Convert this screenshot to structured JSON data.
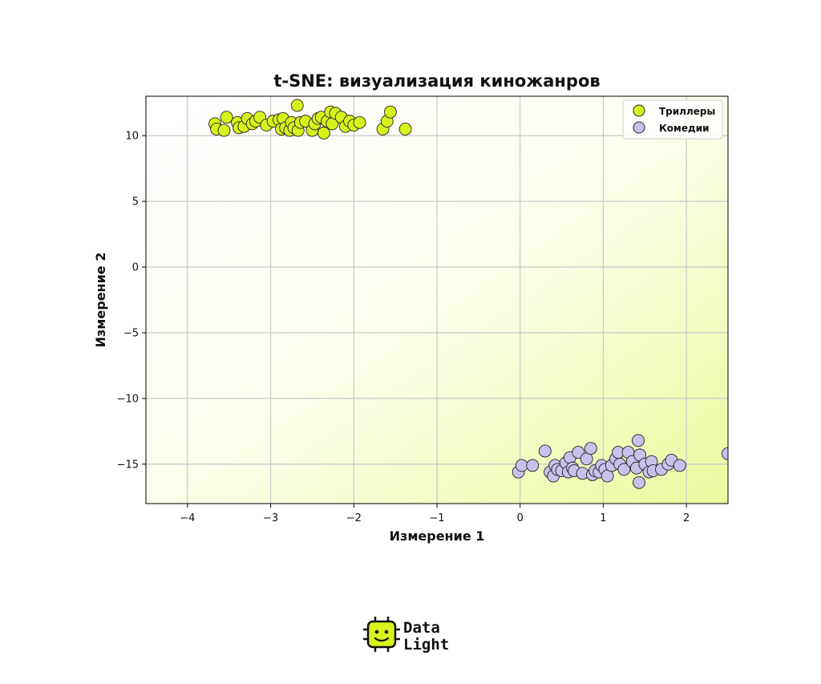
{
  "colors": {
    "thrillers": "#d8f21c",
    "comedies": "#c9c0ec",
    "marker_edge": "#222222",
    "grid": "#c8c8c8",
    "bg_gradient_end": "#ecfa9e",
    "logo": "#d8f21c"
  },
  "logo": {
    "line1": "Data",
    "line2": "Light",
    "icon": "robot-chip-icon"
  },
  "chart_data": {
    "type": "scatter",
    "title": "t-SNE: визуализация киножанров",
    "xlabel": "Измерение 1",
    "ylabel": "Измерение 2",
    "xlim": [
      -4.5,
      2.5
    ],
    "ylim": [
      -18,
      13
    ],
    "xticks": [
      -4,
      -3,
      -2,
      -1,
      0,
      1,
      2
    ],
    "yticks": [
      -15,
      -10,
      -5,
      0,
      5,
      10
    ],
    "xtick_labels": [
      "−4",
      "−3",
      "−2",
      "−1",
      "0",
      "1",
      "2"
    ],
    "ytick_labels": [
      "−15",
      "−10",
      "−5",
      "0",
      "5",
      "10"
    ],
    "grid": true,
    "legend_position": "top-right",
    "series": [
      {
        "name": "Триллеры",
        "color": "#d8f21c",
        "points": [
          [
            -3.67,
            10.9
          ],
          [
            -3.65,
            10.5
          ],
          [
            -3.56,
            10.4
          ],
          [
            -3.53,
            11.4
          ],
          [
            -3.4,
            11.0
          ],
          [
            -3.38,
            10.6
          ],
          [
            -3.32,
            10.7
          ],
          [
            -3.28,
            11.3
          ],
          [
            -3.22,
            10.9
          ],
          [
            -3.18,
            11.1
          ],
          [
            -3.13,
            11.4
          ],
          [
            -3.05,
            10.8
          ],
          [
            -2.97,
            11.1
          ],
          [
            -2.9,
            11.2
          ],
          [
            -2.87,
            10.5
          ],
          [
            -2.85,
            11.3
          ],
          [
            -2.82,
            10.6
          ],
          [
            -2.77,
            10.4
          ],
          [
            -2.75,
            11.0
          ],
          [
            -2.72,
            10.6
          ],
          [
            -2.68,
            12.3
          ],
          [
            -2.67,
            10.4
          ],
          [
            -2.64,
            11.0
          ],
          [
            -2.58,
            11.1
          ],
          [
            -2.5,
            10.4
          ],
          [
            -2.47,
            10.9
          ],
          [
            -2.43,
            11.3
          ],
          [
            -2.39,
            11.4
          ],
          [
            -2.36,
            10.2
          ],
          [
            -2.32,
            11.1
          ],
          [
            -2.28,
            11.8
          ],
          [
            -2.26,
            10.9
          ],
          [
            -2.22,
            11.7
          ],
          [
            -2.15,
            11.4
          ],
          [
            -2.1,
            10.7
          ],
          [
            -2.05,
            11.1
          ],
          [
            -2.0,
            10.8
          ],
          [
            -1.93,
            11.0
          ],
          [
            -1.65,
            10.5
          ],
          [
            -1.6,
            11.1
          ],
          [
            -1.56,
            11.8
          ],
          [
            -1.38,
            10.5
          ]
        ]
      },
      {
        "name": "Комедии",
        "color": "#c9c0ec",
        "points": [
          [
            -0.02,
            -15.6
          ],
          [
            0.02,
            -15.1
          ],
          [
            0.15,
            -15.1
          ],
          [
            0.3,
            -14.0
          ],
          [
            0.36,
            -15.6
          ],
          [
            0.4,
            -15.9
          ],
          [
            0.42,
            -15.1
          ],
          [
            0.45,
            -15.4
          ],
          [
            0.5,
            -15.5
          ],
          [
            0.55,
            -14.9
          ],
          [
            0.58,
            -15.6
          ],
          [
            0.6,
            -14.5
          ],
          [
            0.63,
            -15.3
          ],
          [
            0.65,
            -15.5
          ],
          [
            0.7,
            -14.1
          ],
          [
            0.75,
            -15.7
          ],
          [
            0.8,
            -14.6
          ],
          [
            0.85,
            -13.8
          ],
          [
            0.87,
            -15.8
          ],
          [
            0.9,
            -15.5
          ],
          [
            0.95,
            -15.6
          ],
          [
            0.98,
            -15.1
          ],
          [
            1.02,
            -15.4
          ],
          [
            1.05,
            -15.9
          ],
          [
            1.1,
            -15.1
          ],
          [
            1.15,
            -14.6
          ],
          [
            1.18,
            -14.1
          ],
          [
            1.2,
            -15.0
          ],
          [
            1.25,
            -15.4
          ],
          [
            1.3,
            -14.1
          ],
          [
            1.35,
            -14.8
          ],
          [
            1.4,
            -15.3
          ],
          [
            1.42,
            -13.2
          ],
          [
            1.44,
            -14.3
          ],
          [
            1.43,
            -16.4
          ],
          [
            1.5,
            -15.0
          ],
          [
            1.55,
            -15.6
          ],
          [
            1.58,
            -14.8
          ],
          [
            1.6,
            -15.5
          ],
          [
            1.7,
            -15.4
          ],
          [
            1.78,
            -15.0
          ],
          [
            1.82,
            -14.7
          ],
          [
            1.92,
            -15.1
          ],
          [
            2.5,
            -14.2
          ]
        ]
      }
    ]
  }
}
